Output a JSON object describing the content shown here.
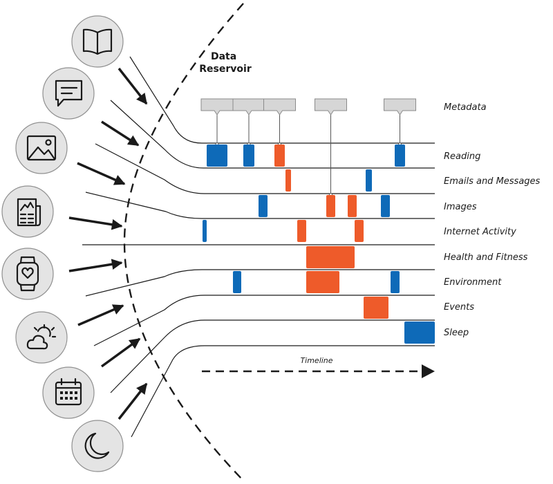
{
  "title": "Data\nReservoir",
  "title_lines": [
    "Data",
    "Reservoir"
  ],
  "colors": {
    "blue": "#0e6ab8",
    "orange": "#ee5b2a",
    "line": "#1a1a1a",
    "icon_bg": "#e4e4e4",
    "tag_bg": "#d6d6d6"
  },
  "icons": [
    {
      "name": "book-icon"
    },
    {
      "name": "message-icon"
    },
    {
      "name": "image-icon"
    },
    {
      "name": "newspaper-icon"
    },
    {
      "name": "smartwatch-icon"
    },
    {
      "name": "weather-icon"
    },
    {
      "name": "calendar-icon"
    },
    {
      "name": "moon-icon"
    }
  ],
  "metadata_label": "Metadata",
  "categories": [
    "Reading",
    "Emails and Messages",
    "Images",
    "Internet Activity",
    "Health and Fitness",
    "Environment",
    "Events",
    "Sleep"
  ],
  "events": [
    {
      "lane": 0,
      "color": "blue",
      "start": 299,
      "end": 329,
      "tag": true
    },
    {
      "lane": 0,
      "color": "blue",
      "start": 352,
      "end": 368,
      "tag": true
    },
    {
      "lane": 0,
      "color": "orange",
      "start": 397,
      "end": 412,
      "tag": true
    },
    {
      "lane": 0,
      "color": "blue",
      "start": 571,
      "end": 586,
      "tag": true
    },
    {
      "lane": 1,
      "color": "orange",
      "start": 413,
      "end": 421
    },
    {
      "lane": 1,
      "color": "blue",
      "start": 529,
      "end": 538
    },
    {
      "lane": 2,
      "color": "blue",
      "start": 374,
      "end": 387
    },
    {
      "lane": 2,
      "color": "orange",
      "start": 472,
      "end": 485,
      "tag": true
    },
    {
      "lane": 2,
      "color": "orange",
      "start": 503,
      "end": 516
    },
    {
      "lane": 2,
      "color": "blue",
      "start": 551,
      "end": 564
    },
    {
      "lane": 3,
      "color": "blue",
      "start": 293,
      "end": 299
    },
    {
      "lane": 3,
      "color": "orange",
      "start": 430,
      "end": 443
    },
    {
      "lane": 3,
      "color": "orange",
      "start": 513,
      "end": 526
    },
    {
      "lane": 4,
      "color": "orange",
      "start": 443,
      "end": 513
    },
    {
      "lane": 5,
      "color": "blue",
      "start": 337,
      "end": 349
    },
    {
      "lane": 5,
      "color": "orange",
      "start": 443,
      "end": 491
    },
    {
      "lane": 5,
      "color": "blue",
      "start": 565,
      "end": 578
    },
    {
      "lane": 6,
      "color": "orange",
      "start": 526,
      "end": 562
    },
    {
      "lane": 7,
      "color": "blue",
      "start": 585,
      "end": 629
    }
  ],
  "timeline_label": "Timeline"
}
